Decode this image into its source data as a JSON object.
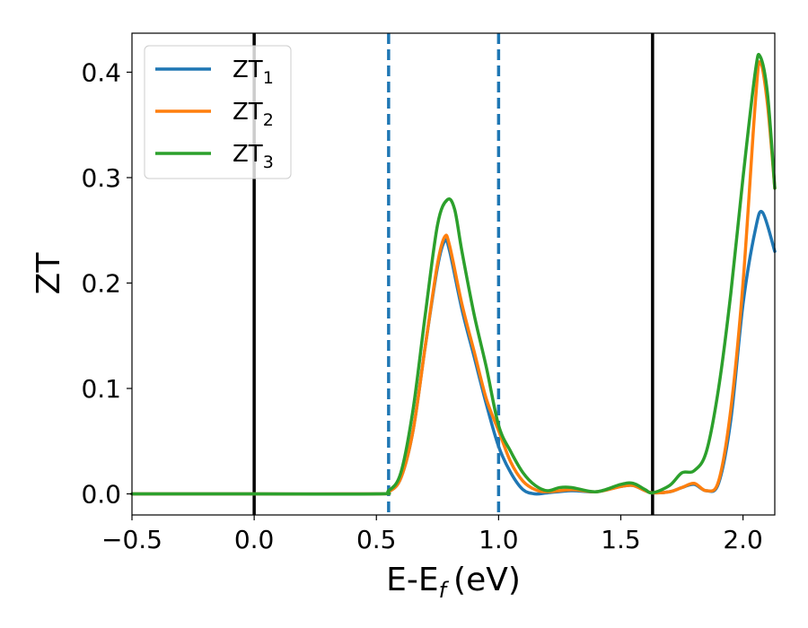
{
  "chart_data": {
    "type": "line",
    "xlabel": "E-E",
    "xlabel_subscript": "f",
    "xlabel_unit": "(eV)",
    "ylabel": "ZT",
    "xlim": [
      -0.5,
      2.13
    ],
    "ylim": [
      -0.02,
      0.437
    ],
    "xticks": [
      -0.5,
      0.0,
      0.5,
      1.0,
      1.5,
      2.0
    ],
    "xtick_labels": [
      "−0.5",
      "0.0",
      "0.5",
      "1.0",
      "1.5",
      "2.0"
    ],
    "yticks": [
      0.0,
      0.1,
      0.2,
      0.3,
      0.4
    ],
    "ytick_labels": [
      "0.0",
      "0.1",
      "0.2",
      "0.3",
      "0.4"
    ],
    "legend_position": "upper-left",
    "vlines": [
      {
        "x": 0.0,
        "style": "solid",
        "color": "#000000"
      },
      {
        "x": 0.55,
        "style": "dashed",
        "color": "#1f77b4"
      },
      {
        "x": 1.0,
        "style": "dashed",
        "color": "#1f77b4"
      },
      {
        "x": 1.63,
        "style": "solid",
        "color": "#000000"
      }
    ],
    "series": [
      {
        "name": "ZT",
        "subscript": "1",
        "color": "#1f77b4",
        "x": [
          -0.5,
          0.0,
          0.5,
          0.55,
          0.6,
          0.65,
          0.7,
          0.75,
          0.78,
          0.8,
          0.85,
          0.9,
          0.95,
          1.0,
          1.05,
          1.1,
          1.15,
          1.2,
          1.3,
          1.4,
          1.5,
          1.55,
          1.6,
          1.63,
          1.7,
          1.75,
          1.8,
          1.85,
          1.9,
          1.95,
          2.0,
          2.05,
          2.08,
          2.13
        ],
        "y": [
          0.0,
          0.0,
          0.0,
          0.002,
          0.015,
          0.06,
          0.14,
          0.215,
          0.24,
          0.23,
          0.175,
          0.13,
          0.085,
          0.045,
          0.02,
          0.004,
          0.0,
          0.001,
          0.003,
          0.002,
          0.007,
          0.008,
          0.003,
          0.001,
          0.002,
          0.006,
          0.009,
          0.003,
          0.01,
          0.07,
          0.18,
          0.25,
          0.267,
          0.23
        ]
      },
      {
        "name": "ZT",
        "subscript": "2",
        "color": "#ff7f0e",
        "x": [
          -0.5,
          0.0,
          0.5,
          0.55,
          0.6,
          0.65,
          0.7,
          0.75,
          0.78,
          0.8,
          0.85,
          0.9,
          0.95,
          1.0,
          1.05,
          1.1,
          1.15,
          1.2,
          1.3,
          1.4,
          1.5,
          1.55,
          1.6,
          1.63,
          1.7,
          1.75,
          1.8,
          1.85,
          1.9,
          1.95,
          2.0,
          2.05,
          2.07,
          2.1,
          2.13
        ],
        "y": [
          0.0,
          0.0,
          0.0,
          0.002,
          0.015,
          0.06,
          0.14,
          0.218,
          0.244,
          0.235,
          0.18,
          0.135,
          0.09,
          0.06,
          0.03,
          0.012,
          0.004,
          0.002,
          0.004,
          0.002,
          0.007,
          0.008,
          0.003,
          0.001,
          0.002,
          0.006,
          0.01,
          0.003,
          0.012,
          0.08,
          0.2,
          0.37,
          0.41,
          0.37,
          0.29
        ]
      },
      {
        "name": "ZT",
        "subscript": "3",
        "color": "#2ca02c",
        "x": [
          -0.5,
          0.0,
          0.5,
          0.55,
          0.6,
          0.65,
          0.7,
          0.75,
          0.79,
          0.82,
          0.85,
          0.9,
          0.95,
          1.0,
          1.05,
          1.1,
          1.15,
          1.2,
          1.25,
          1.3,
          1.4,
          1.5,
          1.55,
          1.6,
          1.63,
          1.7,
          1.75,
          1.8,
          1.85,
          1.9,
          1.95,
          2.0,
          2.05,
          2.07,
          2.1,
          2.13
        ],
        "y": [
          0.0,
          0.0,
          0.0,
          0.003,
          0.02,
          0.08,
          0.17,
          0.255,
          0.279,
          0.27,
          0.23,
          0.17,
          0.12,
          0.065,
          0.04,
          0.02,
          0.008,
          0.003,
          0.006,
          0.006,
          0.002,
          0.009,
          0.01,
          0.004,
          0.001,
          0.008,
          0.02,
          0.022,
          0.04,
          0.1,
          0.19,
          0.3,
          0.4,
          0.415,
          0.38,
          0.29
        ]
      }
    ]
  }
}
